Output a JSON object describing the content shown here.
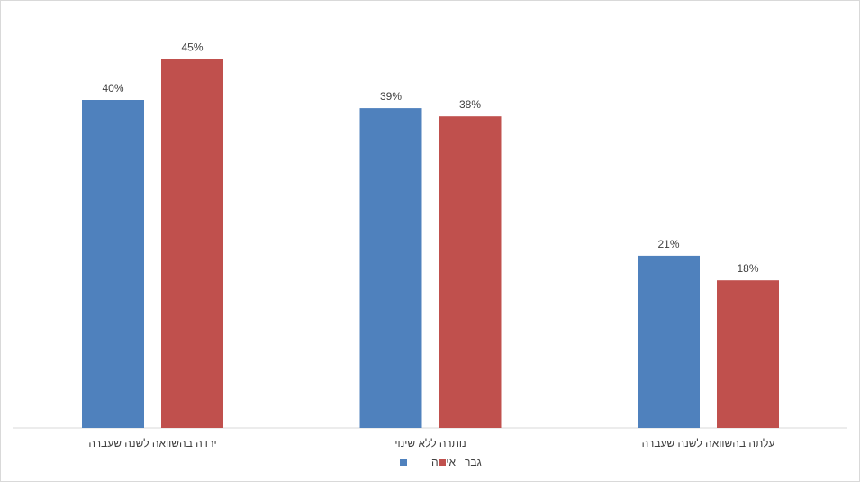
{
  "chart_data": {
    "type": "bar",
    "categories": [
      "ירדה בהשוואה לשנה שעברה",
      "נותרה ללא שינוי",
      "עלתה בהשוואה לשנה שעברה"
    ],
    "series": [
      {
        "name": "אישה",
        "values": [
          40,
          39,
          21
        ],
        "labels": [
          "40%",
          "39%",
          "21%"
        ],
        "color": "#4F81BD"
      },
      {
        "name": "גבר",
        "values": [
          45,
          38,
          18
        ],
        "labels": [
          "45%",
          "38%",
          "18%"
        ],
        "color": "#C0504D"
      }
    ],
    "ylim": [
      0,
      50
    ],
    "grid": false,
    "legend": "bottom-center",
    "title": "",
    "xlabel": "",
    "ylabel": ""
  }
}
